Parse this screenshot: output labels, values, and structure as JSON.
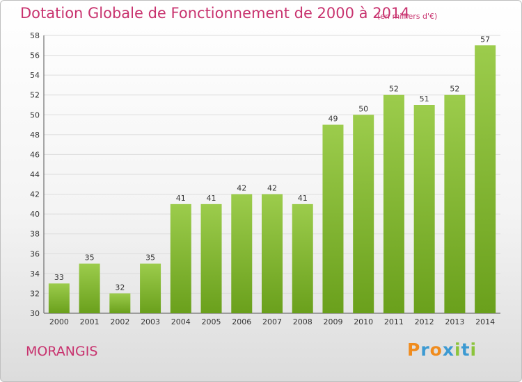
{
  "header": {
    "title": "Dotation Globale de Fonctionnement de 2000 à 2014",
    "unit": "(en milliers d'€)"
  },
  "footer": {
    "place": "MORANGIS",
    "brand": "Proxiti"
  },
  "colors": {
    "accent": "#c8326e",
    "bar_light": "#9ccc4c",
    "bar_dark": "#6aa01c",
    "grid": "#dcdcdc",
    "brand_letters": [
      "#f08c1e",
      "#3c9ad2",
      "#f08c1e",
      "#3c9ad2",
      "#8cc43c",
      "#3c9ad2",
      "#8cc43c"
    ]
  },
  "chart_data": {
    "type": "bar",
    "title": "Dotation Globale de Fonctionnement de 2000 à 2014",
    "subtitle": "(en milliers d'€)",
    "xlabel": "",
    "ylabel": "",
    "categories": [
      "2000",
      "2001",
      "2002",
      "2003",
      "2004",
      "2005",
      "2006",
      "2007",
      "2008",
      "2009",
      "2010",
      "2011",
      "2012",
      "2013",
      "2014"
    ],
    "values": [
      33,
      35,
      32,
      35,
      41,
      41,
      42,
      42,
      41,
      49,
      50,
      52,
      51,
      52,
      57
    ],
    "ylim": [
      30,
      58
    ],
    "yticks": [
      30,
      32,
      34,
      36,
      38,
      40,
      42,
      44,
      46,
      48,
      50,
      52,
      54,
      56,
      58
    ],
    "grid": true,
    "data_labels": true
  }
}
